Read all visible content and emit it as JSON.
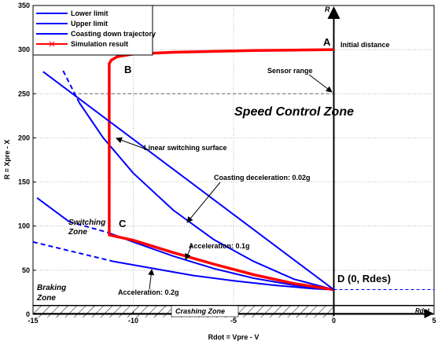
{
  "chart_data": {
    "type": "line",
    "xlabel": "Rdot = Vpre - V",
    "ylabel": "R = Xpre - X",
    "xlim": [
      -15,
      5
    ],
    "ylim": [
      0,
      350
    ],
    "xticks": [
      -15,
      -10,
      -5,
      0,
      5
    ],
    "yticks": [
      0,
      50,
      100,
      150,
      200,
      250,
      300,
      350
    ],
    "grid": true,
    "legend": "upper left",
    "series": [
      {
        "name": "Lower limit",
        "color": "#0000ff",
        "x": [
          -11,
          -9,
          -7,
          -5,
          -3,
          -1,
          0
        ],
        "values": [
          60,
          52,
          44,
          38,
          33,
          29,
          28
        ],
        "extension": {
          "x": [
            -15,
            -11
          ],
          "values": [
            82,
            60
          ]
        }
      },
      {
        "name": "Upper limit",
        "color": "#0000ff",
        "x": [
          -14.8,
          -13.2,
          null,
          -11.3,
          -10,
          -8,
          -6,
          -4,
          -2,
          0
        ],
        "values": [
          132,
          105,
          null,
          93,
          82,
          66,
          52,
          41,
          33,
          28
        ],
        "extension": {
          "x": [
            -13.2,
            -11.3
          ],
          "values": [
            105,
            93
          ]
        }
      },
      {
        "name": "Coasting down trajectory",
        "color": "#0000ff",
        "x": [
          -12.7,
          -11.5,
          -10,
          -8,
          -6,
          -4,
          -2,
          0
        ],
        "values": [
          240,
          200,
          160,
          118,
          85,
          60,
          40,
          28
        ],
        "extension": {
          "x": [
            -13.5,
            -12.7
          ],
          "values": [
            276,
            240
          ]
        }
      },
      {
        "name": "Simulation result",
        "color": "#ff0000",
        "marker": "x",
        "x": [
          0,
          -2,
          -4,
          -6,
          -8,
          -10,
          -10.8,
          -11.1,
          -11.2,
          -11.2,
          -11.2,
          -10,
          -8,
          -6,
          -4,
          -2,
          0
        ],
        "values": [
          300,
          299.5,
          299,
          298,
          297,
          295,
          292,
          288,
          284,
          92,
          90,
          84,
          70,
          57,
          45,
          35,
          28
        ]
      },
      {
        "color": "#0000ff",
        "x": [
          -14.5,
          0
        ],
        "values": [
          275,
          28
        ]
      }
    ],
    "hlines": [
      {
        "value": 250,
        "color": "#666666",
        "x": [
          -13,
          0
        ]
      },
      {
        "value": 28,
        "color": "#0000ff",
        "x": [
          0,
          5
        ]
      },
      {
        "value": 10,
        "color": "#000000",
        "x": [
          -15,
          5
        ]
      }
    ],
    "annotations": [
      {
        "text": "A"
      },
      {
        "text": "Initial distance"
      },
      {
        "text": "B"
      },
      {
        "text": "Sensor range"
      },
      {
        "text": "Speed Control Zone"
      },
      {
        "text": "Linear switching surface"
      },
      {
        "text": "Coasting deceleration: 0.02g"
      },
      {
        "text": "C"
      },
      {
        "text": "Switching"
      },
      {
        "text": "Zone"
      },
      {
        "text": "Acceleration: 0.1g"
      },
      {
        "text": "D (0, Rdes)"
      },
      {
        "text": "Braking"
      },
      {
        "text": "Zone"
      },
      {
        "text": "Acceleration: 0.2g"
      },
      {
        "text": "Crashing Zone"
      },
      {
        "text": "R"
      },
      {
        "text": "Rdot"
      }
    ]
  }
}
